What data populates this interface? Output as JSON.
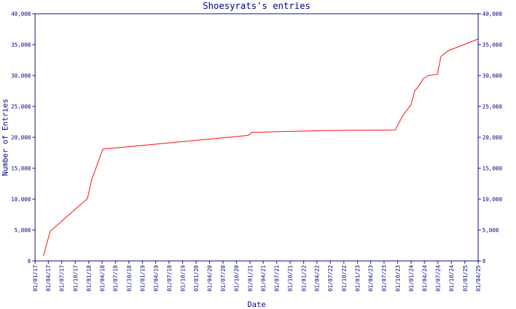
{
  "chart_data": {
    "type": "line",
    "title": "Shoesyrats's entries",
    "xlabel": "Date",
    "ylabel": "Number of Entries",
    "x": [
      "2017-02-26",
      "2017-04-14",
      "2017-12-23",
      "2018-01-20",
      "2018-04-07",
      "2020-12-18",
      "2021-01-15",
      "2022-05-15",
      "2023-09-15",
      "2023-11-05",
      "2024-01-01",
      "2024-01-25",
      "2024-02-18",
      "2024-03-25",
      "2024-04-28",
      "2024-06-28",
      "2024-07-22",
      "2024-09-08",
      "2025-04-01"
    ],
    "series": [
      {
        "name": "Entries",
        "color": "#ff0000",
        "values": [
          800,
          4800,
          10100,
          13100,
          18100,
          20300,
          20800,
          21100,
          21200,
          23500,
          25300,
          27500,
          28200,
          29500,
          30000,
          30200,
          33100,
          34000,
          35900
        ]
      }
    ],
    "xlim": [
      "2017-01-01",
      "2025-04-01"
    ],
    "xticks": [
      {
        "value": "2017-01-01",
        "label": "01/01/17"
      },
      {
        "value": "2017-04-01",
        "label": "01/04/17"
      },
      {
        "value": "2017-07-01",
        "label": "01/07/17"
      },
      {
        "value": "2017-10-01",
        "label": "01/10/17"
      },
      {
        "value": "2018-01-01",
        "label": "01/01/18"
      },
      {
        "value": "2018-04-01",
        "label": "01/04/18"
      },
      {
        "value": "2018-07-01",
        "label": "01/07/18"
      },
      {
        "value": "2018-10-01",
        "label": "01/10/18"
      },
      {
        "value": "2019-01-01",
        "label": "01/01/19"
      },
      {
        "value": "2019-04-01",
        "label": "01/04/19"
      },
      {
        "value": "2019-07-01",
        "label": "01/07/19"
      },
      {
        "value": "2019-10-01",
        "label": "01/10/19"
      },
      {
        "value": "2020-01-01",
        "label": "01/01/20"
      },
      {
        "value": "2020-04-01",
        "label": "01/04/20"
      },
      {
        "value": "2020-07-01",
        "label": "01/07/20"
      },
      {
        "value": "2020-10-01",
        "label": "01/10/20"
      },
      {
        "value": "2021-01-01",
        "label": "01/01/21"
      },
      {
        "value": "2021-04-01",
        "label": "01/04/21"
      },
      {
        "value": "2021-07-01",
        "label": "01/07/21"
      },
      {
        "value": "2021-10-01",
        "label": "01/10/21"
      },
      {
        "value": "2022-01-01",
        "label": "01/01/22"
      },
      {
        "value": "2022-04-01",
        "label": "01/04/22"
      },
      {
        "value": "2022-07-01",
        "label": "01/07/22"
      },
      {
        "value": "2022-10-01",
        "label": "01/10/22"
      },
      {
        "value": "2023-01-01",
        "label": "01/01/23"
      },
      {
        "value": "2023-04-01",
        "label": "01/04/23"
      },
      {
        "value": "2023-07-01",
        "label": "01/07/23"
      },
      {
        "value": "2023-10-01",
        "label": "01/10/23"
      },
      {
        "value": "2024-01-01",
        "label": "01/01/24"
      },
      {
        "value": "2024-04-01",
        "label": "01/04/24"
      },
      {
        "value": "2024-07-01",
        "label": "01/07/24"
      },
      {
        "value": "2024-10-01",
        "label": "01/10/24"
      },
      {
        "value": "2025-01-01",
        "label": "01/01/25"
      },
      {
        "value": "2025-04-01",
        "label": "01/04/25"
      }
    ],
    "ylim": [
      0,
      40000
    ],
    "yticks": [
      0,
      {
        "value": 5000,
        "label": "5,000"
      },
      {
        "value": 10000,
        "label": "10,000"
      },
      {
        "value": 15000,
        "label": "15,000"
      },
      {
        "value": 20000,
        "label": "20,000"
      },
      {
        "value": 25000,
        "label": "25,000"
      },
      {
        "value": 30000,
        "label": "30,000"
      },
      {
        "value": 35000,
        "label": "35,000"
      },
      {
        "value": 40000,
        "label": "40,000"
      }
    ],
    "axis_color": "#000080"
  }
}
